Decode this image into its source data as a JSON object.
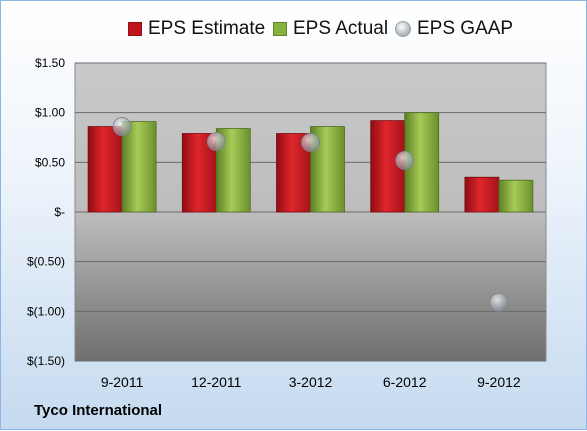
{
  "company": "Tyco International",
  "chart_data": {
    "type": "bar",
    "categories": [
      "9-2011",
      "12-2011",
      "3-2012",
      "6-2012",
      "9-2012"
    ],
    "series": [
      {
        "name": "EPS Estimate",
        "kind": "bar",
        "color": "#c0141c",
        "values": [
          0.86,
          0.79,
          0.79,
          0.92,
          0.35
        ]
      },
      {
        "name": "EPS Actual",
        "kind": "bar",
        "color": "#86b13b",
        "values": [
          0.91,
          0.84,
          0.86,
          1.0,
          0.32
        ]
      },
      {
        "name": "EPS GAAP",
        "kind": "scatter",
        "color": "#b7bcc4",
        "values": [
          0.86,
          0.71,
          0.7,
          0.52,
          -0.91
        ]
      }
    ],
    "ylim": [
      -1.5,
      1.5
    ],
    "yticks": [
      1.5,
      1.0,
      0.5,
      0,
      -0.5,
      -1.0,
      -1.5
    ],
    "ytick_labels": [
      "$1.50",
      "$1.00",
      "$0.50",
      "$-",
      "$(0.50)",
      "$(1.00)",
      "$(1.50)"
    ],
    "grid": true,
    "legend_position": "top"
  }
}
